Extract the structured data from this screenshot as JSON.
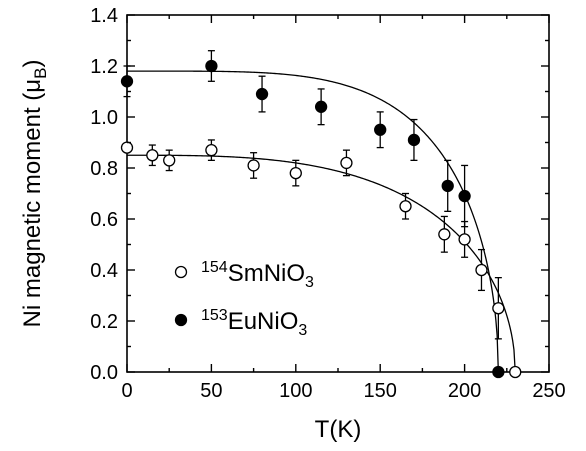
{
  "chart_data": {
    "type": "scatter",
    "xlabel": "T(K)",
    "ylabel": "Ni magnetic moment (μ",
    "ylabel_sub": "B",
    "ylabel_close": ")",
    "xlim": [
      0,
      250
    ],
    "ylim": [
      0,
      1.4
    ],
    "xticks": [
      0,
      50,
      100,
      150,
      200,
      250
    ],
    "yticks": [
      0.0,
      0.2,
      0.4,
      0.6,
      0.8,
      1.0,
      1.2,
      1.4
    ],
    "xtick_labels": [
      "0",
      "50",
      "100",
      "150",
      "200",
      "250"
    ],
    "ytick_labels": [
      "0.0",
      "0.2",
      "0.4",
      "0.6",
      "0.8",
      "1.0",
      "1.2",
      "1.4"
    ],
    "grid": false,
    "legend_position": "bottom-left",
    "series": [
      {
        "legend_sup": "154",
        "legend_main": "SmNiO",
        "legend_sub": "3",
        "marker": "open-circle",
        "points": [
          {
            "x": 0,
            "y": 0.88,
            "err": 0.0
          },
          {
            "x": 15,
            "y": 0.85,
            "err": 0.04
          },
          {
            "x": 25,
            "y": 0.83,
            "err": 0.04
          },
          {
            "x": 50,
            "y": 0.87,
            "err": 0.04
          },
          {
            "x": 75,
            "y": 0.81,
            "err": 0.05
          },
          {
            "x": 100,
            "y": 0.78,
            "err": 0.05
          },
          {
            "x": 130,
            "y": 0.82,
            "err": 0.05
          },
          {
            "x": 165,
            "y": 0.65,
            "err": 0.05
          },
          {
            "x": 188,
            "y": 0.54,
            "err": 0.07
          },
          {
            "x": 200,
            "y": 0.52,
            "err": 0.07
          },
          {
            "x": 210,
            "y": 0.4,
            "err": 0.08
          },
          {
            "x": 220,
            "y": 0.25,
            "err": 0.12
          },
          {
            "x": 230,
            "y": 0.0,
            "err": 0.0
          }
        ],
        "fit": {
          "M0": 0.85,
          "Tc": 230,
          "n": 3.2
        }
      },
      {
        "legend_sup": "153",
        "legend_main": "EuNiO",
        "legend_sub": "3",
        "marker": "filled-circle",
        "points": [
          {
            "x": 0,
            "y": 1.14,
            "err": 0.06
          },
          {
            "x": 50,
            "y": 1.2,
            "err": 0.06
          },
          {
            "x": 80,
            "y": 1.09,
            "err": 0.07
          },
          {
            "x": 115,
            "y": 1.04,
            "err": 0.07
          },
          {
            "x": 150,
            "y": 0.95,
            "err": 0.07
          },
          {
            "x": 170,
            "y": 0.91,
            "err": 0.08
          },
          {
            "x": 190,
            "y": 0.73,
            "err": 0.1
          },
          {
            "x": 200,
            "y": 0.69,
            "err": 0.12
          },
          {
            "x": 220,
            "y": 0.0,
            "err": 0.0
          }
        ],
        "fit": {
          "M0": 1.18,
          "Tc": 220,
          "n": 4.5
        }
      }
    ]
  }
}
